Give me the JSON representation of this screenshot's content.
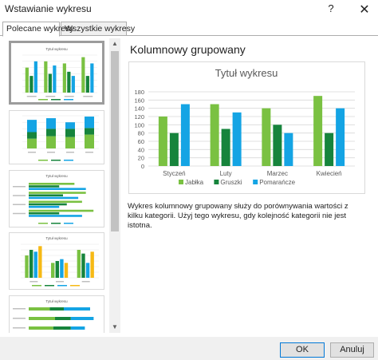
{
  "window": {
    "title": "Wstawianie wykresu",
    "help_label": "?",
    "close_label": "✕"
  },
  "tabs": [
    {
      "label": "Polecane wykresy"
    },
    {
      "label": "Wszystkie wykresy"
    }
  ],
  "thumbnails": [
    {
      "title": "Tytuł wykresu",
      "kind": "clustered-column"
    },
    {
      "title": "",
      "kind": "stacked-column"
    },
    {
      "title": "Tytuł wykresu",
      "kind": "clustered-bar"
    },
    {
      "title": "Tytuł wykresu",
      "kind": "clustered-column-by-fruit"
    },
    {
      "title": "Tytuł wykresu",
      "kind": "stacked-bar"
    }
  ],
  "selected": {
    "name": "Kolumnowy grupowany",
    "description": "Wykres kolumnowy grupowany służy do porównywania wartości z kilku kategorii. Użyj tego wykresu, gdy kolejność kategorii nie jest istotna."
  },
  "chart_data": {
    "type": "bar",
    "title": "Tytuł wykresu",
    "categories": [
      "Styczeń",
      "Luty",
      "Marzec",
      "Kwiecień"
    ],
    "series": [
      {
        "name": "Jabłka",
        "color": "#7ac142",
        "values": [
          120,
          150,
          140,
          170
        ]
      },
      {
        "name": "Gruszki",
        "color": "#16843c",
        "values": [
          80,
          90,
          100,
          80
        ]
      },
      {
        "name": "Pomarańcze",
        "color": "#14a4e4",
        "values": [
          150,
          130,
          80,
          140
        ]
      }
    ],
    "ylim": [
      0,
      180
    ],
    "yticks": [
      "0",
      "20",
      "40",
      "60",
      "80",
      "100",
      "120",
      "140",
      "160",
      "180"
    ],
    "grid": true,
    "legend": "bottom"
  },
  "buttons": {
    "ok": "OK",
    "cancel": "Anuluj"
  }
}
